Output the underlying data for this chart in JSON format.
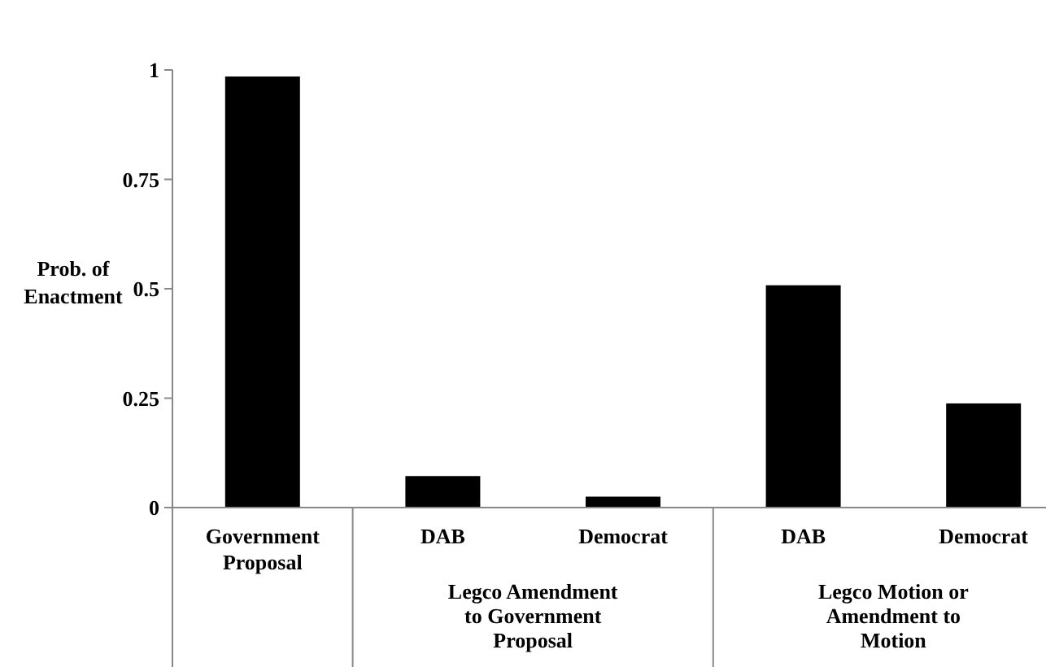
{
  "chart_data": {
    "type": "bar",
    "ylabel": "Prob. of Enactment",
    "categories": [
      "Government Proposal",
      "DAB",
      "Democrat",
      "DAB",
      "Democrat"
    ],
    "values": [
      0.985,
      0.072,
      0.025,
      0.508,
      0.238
    ],
    "color": "#000000",
    "ylim": [
      0,
      1
    ],
    "yticks": [
      0,
      0.25,
      0.5,
      0.75,
      1
    ],
    "grid": false,
    "annotations": [
      "Legco Amendment to Government Proposal",
      "Legco Motion or Amendment to Motion"
    ]
  }
}
